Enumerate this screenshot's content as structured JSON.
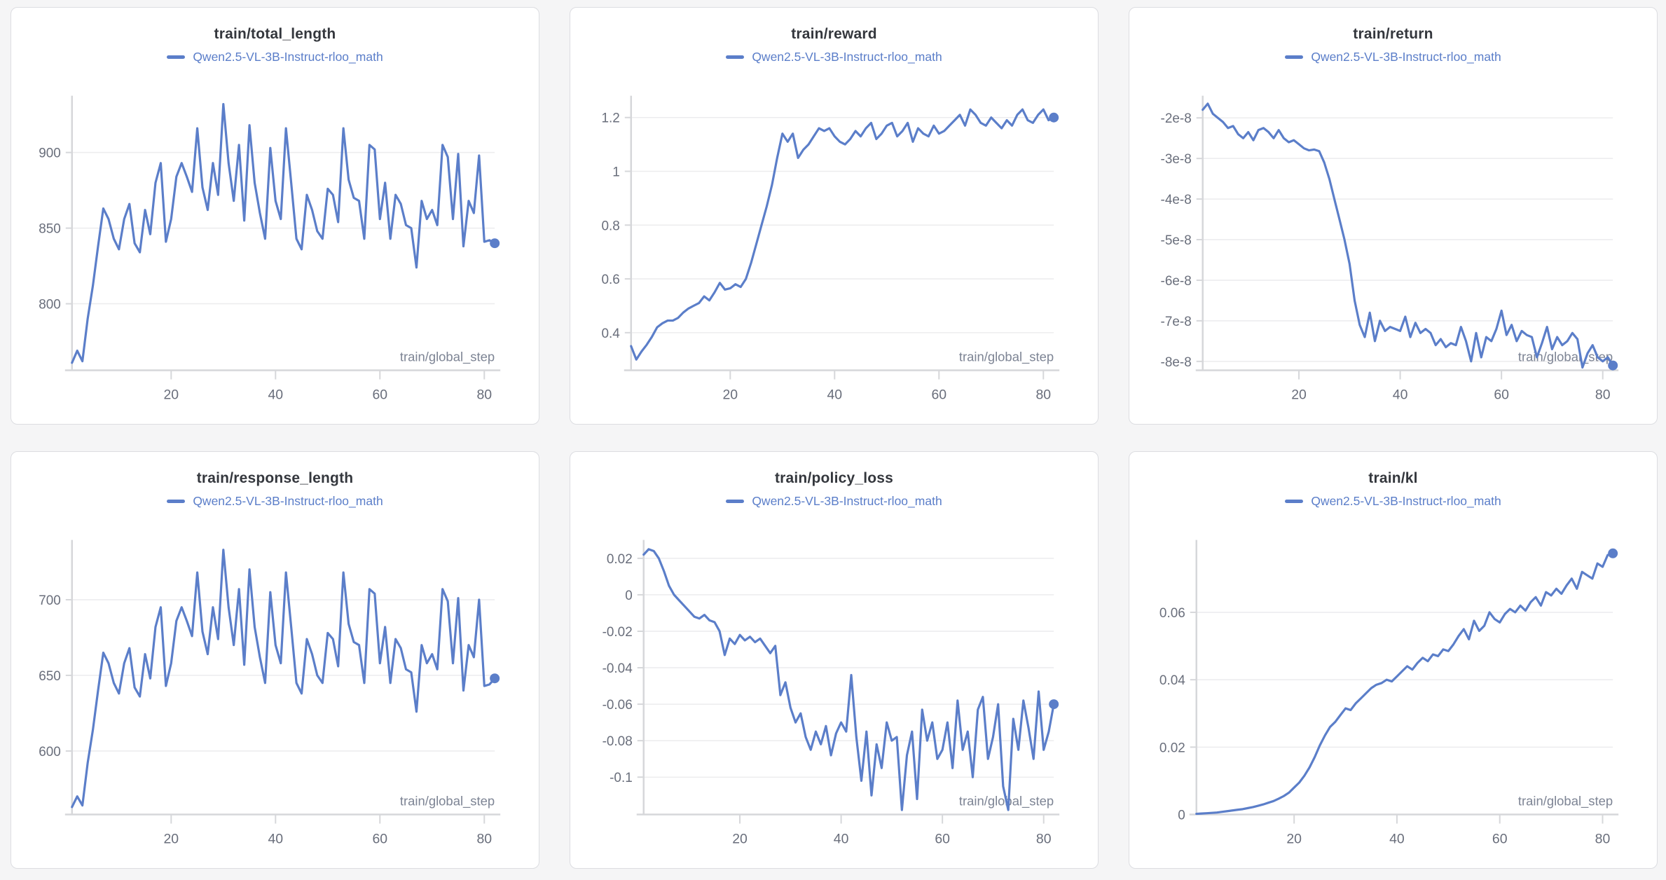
{
  "colors": {
    "line": "#5b7ec9",
    "title_text": "#34373d",
    "tick_text": "#696e7b",
    "axis_label_text": "#7d8494",
    "grid": "#ececee",
    "axis": "#d6d7da",
    "card_bg": "#ffffff",
    "page_bg": "#f5f5f6"
  },
  "legend_label": "Qwen2.5-VL-3B-Instruct-rloo_math",
  "x_axis_label": "train/global_step",
  "chart_data": [
    {
      "type": "line",
      "title": "train/total_length",
      "legend": "Qwen2.5-VL-3B-Instruct-rloo_math",
      "x_label": "train/global_step",
      "xlim": [
        1,
        82
      ],
      "x_ticks": [
        20,
        40,
        60,
        80
      ],
      "y_ticks": [
        800,
        850,
        900
      ],
      "y_tick_labels": [
        "800",
        "850",
        "900"
      ],
      "ylim": [
        756,
        932
      ],
      "values": [
        761,
        769,
        762,
        790,
        812,
        838,
        863,
        856,
        843,
        836,
        856,
        866,
        840,
        834,
        862,
        846,
        880,
        893,
        841,
        856,
        884,
        893,
        884,
        874,
        916,
        877,
        862,
        893,
        872,
        932,
        893,
        868,
        905,
        855,
        918,
        880,
        860,
        843,
        903,
        868,
        856,
        916,
        880,
        843,
        836,
        872,
        862,
        848,
        843,
        876,
        872,
        854,
        916,
        882,
        870,
        868,
        843,
        905,
        902,
        856,
        880,
        843,
        872,
        866,
        852,
        850,
        824,
        868,
        856,
        862,
        852,
        905,
        897,
        856,
        899,
        838,
        868,
        860,
        898,
        841,
        842,
        840
      ]
    },
    {
      "type": "line",
      "title": "train/reward",
      "legend": "Qwen2.5-VL-3B-Instruct-rloo_math",
      "x_label": "train/global_step",
      "xlim": [
        1,
        82
      ],
      "x_ticks": [
        20,
        40,
        60,
        80
      ],
      "y_ticks": [
        0.4,
        0.6,
        0.8,
        1.0,
        1.2
      ],
      "y_tick_labels": [
        "0.4",
        "0.6",
        "0.8",
        "1",
        "1.2"
      ],
      "ylim": [
        0.26,
        1.25
      ],
      "values": [
        0.35,
        0.3,
        0.33,
        0.355,
        0.385,
        0.42,
        0.435,
        0.445,
        0.445,
        0.455,
        0.475,
        0.49,
        0.5,
        0.51,
        0.535,
        0.52,
        0.55,
        0.585,
        0.56,
        0.565,
        0.58,
        0.57,
        0.6,
        0.66,
        0.73,
        0.8,
        0.87,
        0.95,
        1.05,
        1.14,
        1.11,
        1.14,
        1.05,
        1.08,
        1.1,
        1.13,
        1.16,
        1.15,
        1.16,
        1.13,
        1.11,
        1.1,
        1.12,
        1.15,
        1.13,
        1.16,
        1.18,
        1.12,
        1.14,
        1.17,
        1.18,
        1.13,
        1.15,
        1.18,
        1.11,
        1.16,
        1.14,
        1.13,
        1.17,
        1.14,
        1.15,
        1.17,
        1.19,
        1.21,
        1.17,
        1.23,
        1.21,
        1.18,
        1.17,
        1.2,
        1.18,
        1.16,
        1.19,
        1.17,
        1.21,
        1.23,
        1.19,
        1.18,
        1.21,
        1.23,
        1.19,
        1.2
      ]
    },
    {
      "type": "line",
      "title": "train/return",
      "legend": "Qwen2.5-VL-3B-Instruct-rloo_math",
      "x_label": "train/global_step",
      "xlim": [
        1,
        82
      ],
      "x_ticks": [
        20,
        40,
        60,
        80
      ],
      "y_ticks": [
        -8e-08,
        -7e-08,
        -6e-08,
        -5e-08,
        -4e-08,
        -3e-08,
        -2e-08
      ],
      "y_tick_labels": [
        "-8e-8",
        "-7e-8",
        "-6e-8",
        "-5e-8",
        "-4e-8",
        "-3e-8",
        "-2e-8"
      ],
      "ylim": [
        -8.22e-08,
        -1.66e-08
      ],
      "values": [
        -1.8e-08,
        -1.65e-08,
        -1.9e-08,
        -2e-08,
        -2.1e-08,
        -2.25e-08,
        -2.2e-08,
        -2.4e-08,
        -2.5e-08,
        -2.35e-08,
        -2.55e-08,
        -2.3e-08,
        -2.25e-08,
        -2.35e-08,
        -2.5e-08,
        -2.3e-08,
        -2.5e-08,
        -2.6e-08,
        -2.55e-08,
        -2.65e-08,
        -2.75e-08,
        -2.8e-08,
        -2.78e-08,
        -2.82e-08,
        -3.1e-08,
        -3.5e-08,
        -4e-08,
        -4.5e-08,
        -5e-08,
        -5.6e-08,
        -6.5e-08,
        -7.1e-08,
        -7.4e-08,
        -6.8e-08,
        -7.5e-08,
        -7e-08,
        -7.25e-08,
        -7.15e-08,
        -7.2e-08,
        -7.25e-08,
        -6.9e-08,
        -7.4e-08,
        -7.05e-08,
        -7.3e-08,
        -7.2e-08,
        -7.3e-08,
        -7.6e-08,
        -7.45e-08,
        -7.65e-08,
        -7.55e-08,
        -7.6e-08,
        -7.15e-08,
        -7.5e-08,
        -8e-08,
        -7.3e-08,
        -7.9e-08,
        -7.4e-08,
        -7.5e-08,
        -7.2e-08,
        -6.75e-08,
        -7.35e-08,
        -7.1e-08,
        -7.5e-08,
        -7.25e-08,
        -7.35e-08,
        -7.4e-08,
        -7.9e-08,
        -7.55e-08,
        -7.15e-08,
        -7.7e-08,
        -7.4e-08,
        -7.6e-08,
        -7.5e-08,
        -7.3e-08,
        -7.45e-08,
        -8.15e-08,
        -7.8e-08,
        -7.6e-08,
        -7.9e-08,
        -8e-08,
        -7.9e-08,
        -8.1e-08
      ]
    },
    {
      "type": "line",
      "title": "train/response_length",
      "legend": "Qwen2.5-VL-3B-Instruct-rloo_math",
      "x_label": "train/global_step",
      "xlim": [
        1,
        82
      ],
      "x_ticks": [
        20,
        40,
        60,
        80
      ],
      "y_ticks": [
        600,
        650,
        700
      ],
      "y_tick_labels": [
        "600",
        "650",
        "700"
      ],
      "ylim": [
        558,
        734
      ],
      "values": [
        563,
        570,
        564,
        592,
        614,
        640,
        665,
        658,
        645,
        638,
        658,
        668,
        642,
        636,
        664,
        648,
        682,
        695,
        643,
        658,
        686,
        695,
        686,
        676,
        718,
        679,
        664,
        695,
        674,
        733,
        695,
        670,
        707,
        657,
        720,
        682,
        662,
        645,
        705,
        670,
        658,
        718,
        682,
        645,
        638,
        674,
        664,
        650,
        645,
        678,
        674,
        656,
        718,
        684,
        672,
        670,
        645,
        707,
        704,
        658,
        682,
        645,
        674,
        668,
        654,
        652,
        626,
        670,
        658,
        664,
        654,
        707,
        699,
        658,
        701,
        640,
        670,
        662,
        700,
        643,
        644,
        648
      ]
    },
    {
      "type": "line",
      "title": "train/policy_loss",
      "legend": "Qwen2.5-VL-3B-Instruct-rloo_math",
      "x_label": "train/global_step",
      "xlim": [
        1,
        82
      ],
      "x_ticks": [
        20,
        40,
        60,
        80
      ],
      "y_ticks": [
        -0.1,
        -0.08,
        -0.06,
        -0.04,
        -0.02,
        0,
        0.02
      ],
      "y_tick_labels": [
        "-0.1",
        "-0.08",
        "-0.06",
        "-0.04",
        "-0.02",
        "0",
        "0.02"
      ],
      "ylim": [
        -0.1205,
        0.0255
      ],
      "values": [
        0.022,
        0.025,
        0.024,
        0.02,
        0.013,
        0.005,
        0.0,
        -0.003,
        -0.006,
        -0.009,
        -0.012,
        -0.013,
        -0.011,
        -0.014,
        -0.015,
        -0.02,
        -0.033,
        -0.024,
        -0.027,
        -0.022,
        -0.025,
        -0.023,
        -0.026,
        -0.024,
        -0.028,
        -0.032,
        -0.028,
        -0.055,
        -0.048,
        -0.062,
        -0.07,
        -0.065,
        -0.078,
        -0.085,
        -0.075,
        -0.082,
        -0.072,
        -0.088,
        -0.076,
        -0.07,
        -0.075,
        -0.044,
        -0.078,
        -0.102,
        -0.075,
        -0.11,
        -0.082,
        -0.095,
        -0.07,
        -0.08,
        -0.078,
        -0.118,
        -0.088,
        -0.075,
        -0.112,
        -0.063,
        -0.08,
        -0.07,
        -0.09,
        -0.085,
        -0.07,
        -0.095,
        -0.058,
        -0.085,
        -0.075,
        -0.1,
        -0.063,
        -0.056,
        -0.09,
        -0.078,
        -0.06,
        -0.105,
        -0.118,
        -0.068,
        -0.085,
        -0.058,
        -0.073,
        -0.09,
        -0.053,
        -0.085,
        -0.075,
        -0.06
      ]
    },
    {
      "type": "line",
      "title": "train/kl",
      "legend": "Qwen2.5-VL-3B-Instruct-rloo_math",
      "x_label": "train/global_step",
      "xlim": [
        1,
        82
      ],
      "x_ticks": [
        20,
        40,
        60,
        80
      ],
      "y_ticks": [
        0,
        0.02,
        0.04,
        0.06
      ],
      "y_tick_labels": [
        "0",
        "0.02",
        "0.04",
        "0.06"
      ],
      "ylim": [
        0,
        0.079
      ],
      "values": [
        0.0002,
        0.0003,
        0.0004,
        0.0005,
        0.0006,
        0.0008,
        0.001,
        0.0012,
        0.0014,
        0.0016,
        0.0019,
        0.0022,
        0.0026,
        0.003,
        0.0035,
        0.004,
        0.0047,
        0.0055,
        0.0065,
        0.008,
        0.0095,
        0.0115,
        0.014,
        0.017,
        0.0205,
        0.0235,
        0.026,
        0.0275,
        0.0295,
        0.0315,
        0.031,
        0.033,
        0.0345,
        0.036,
        0.0375,
        0.0385,
        0.039,
        0.04,
        0.0395,
        0.041,
        0.0425,
        0.044,
        0.043,
        0.045,
        0.0465,
        0.0455,
        0.0475,
        0.047,
        0.049,
        0.0485,
        0.0505,
        0.053,
        0.055,
        0.052,
        0.0575,
        0.0545,
        0.056,
        0.06,
        0.058,
        0.057,
        0.0595,
        0.061,
        0.06,
        0.062,
        0.0605,
        0.063,
        0.0645,
        0.062,
        0.066,
        0.065,
        0.067,
        0.0655,
        0.068,
        0.07,
        0.067,
        0.072,
        0.071,
        0.07,
        0.0745,
        0.0735,
        0.077,
        0.0775
      ]
    }
  ]
}
